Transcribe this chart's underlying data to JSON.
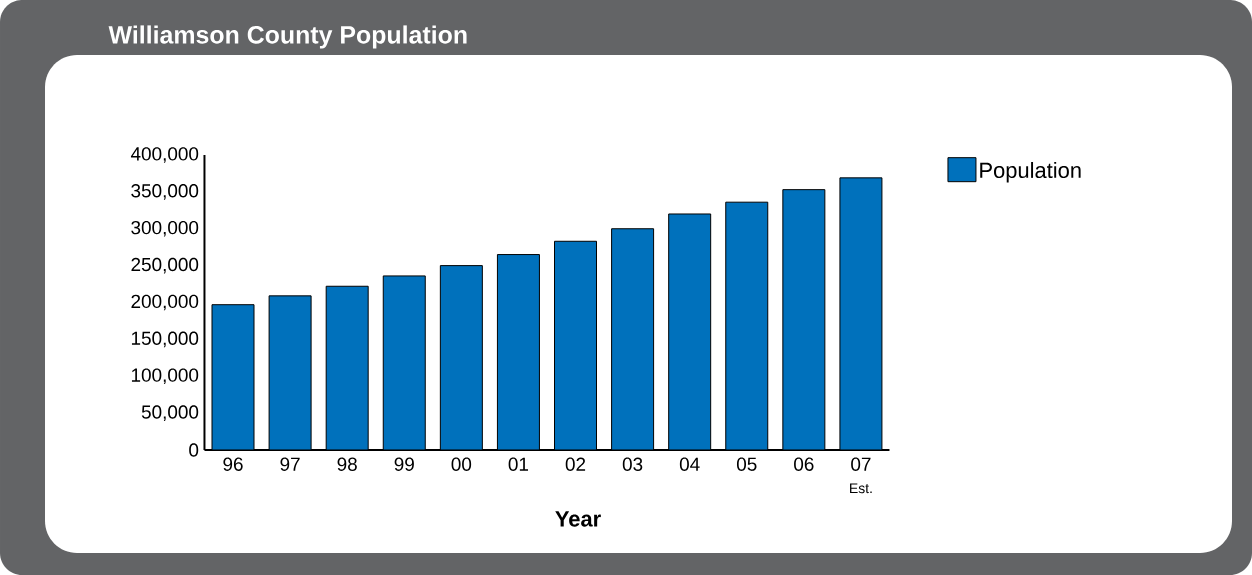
{
  "chart_data": {
    "type": "bar",
    "title": "Williamson County Population",
    "xlabel": "Year",
    "categories": [
      "96",
      "97",
      "98",
      "99",
      "00",
      "01",
      "02",
      "03",
      "04",
      "05",
      "06",
      "07"
    ],
    "series": [
      {
        "name": "Population",
        "color": "#0071bc",
        "values": [
          197000,
          209000,
          222000,
          236000,
          250000,
          265000,
          283000,
          300000,
          320000,
          336000,
          353000,
          369000
        ]
      }
    ],
    "ylim": [
      0,
      400000
    ],
    "yticks": [
      0,
      {
        "value": 50000,
        "label": "50,000"
      },
      {
        "value": 100000,
        "label": "100,000"
      },
      {
        "value": 150000,
        "label": "150,000"
      },
      {
        "value": 200000,
        "label": "200,000"
      },
      {
        "value": 250000,
        "label": "250,000"
      },
      {
        "value": 300000,
        "label": "300,000"
      },
      {
        "value": 350000,
        "label": "350,000"
      },
      {
        "value": 400000,
        "label": "400,000"
      }
    ],
    "annotations": [
      "Est."
    ],
    "legend": "top right"
  }
}
